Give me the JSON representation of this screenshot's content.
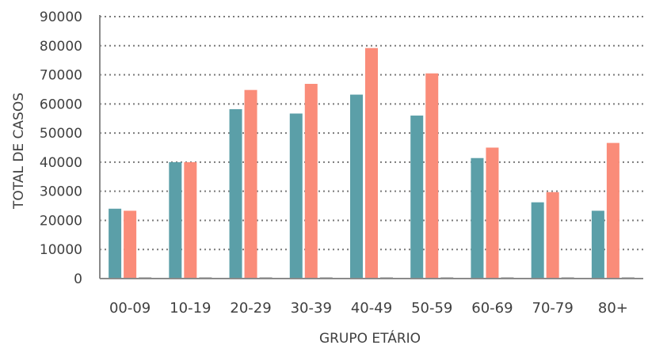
{
  "chart_data": {
    "type": "bar",
    "categories": [
      "00-09",
      "10-19",
      "20-29",
      "30-39",
      "40-49",
      "50-59",
      "60-69",
      "70-79",
      "80+"
    ],
    "series": [
      {
        "values": [
          24000,
          40000,
          58200,
          56700,
          63200,
          56000,
          41400,
          26200,
          23300
        ]
      },
      {
        "values": [
          23300,
          40000,
          64800,
          66900,
          79200,
          70500,
          45000,
          29700,
          46600
        ]
      },
      {
        "values": [
          0,
          0,
          0,
          0,
          0,
          0,
          0,
          0,
          0
        ]
      }
    ],
    "colors": [
      "#5B9FA8",
      "#FA8C79",
      "#8A8A8A"
    ],
    "xlabel": "GRUPO ETÁRIO",
    "ylabel": "TOTAL DE CASOS",
    "ylim": [
      0,
      90000
    ],
    "yticks": [
      "0",
      "10000",
      "20000",
      "30000",
      "40000",
      "50000",
      "60000",
      "70000",
      "80000",
      "90000"
    ],
    "grid": true,
    "grid_style": "dotted",
    "legend": "none"
  }
}
